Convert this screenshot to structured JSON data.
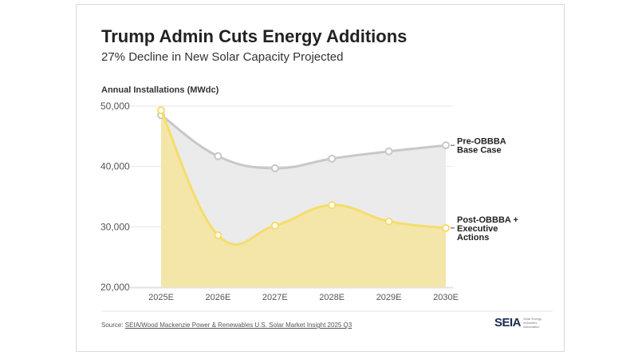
{
  "chart_data": {
    "type": "area",
    "title": "Trump Admin Cuts Energy Additions",
    "subtitle": "27% Decline in New Solar Capacity Projected",
    "ylabel": "Annual Installations (MWdc)",
    "xlabel": "",
    "categories": [
      "2025E",
      "2026E",
      "2027E",
      "2028E",
      "2029E",
      "2030E"
    ],
    "ylim": [
      20000,
      50000
    ],
    "yticks": [
      20000,
      30000,
      40000,
      50000
    ],
    "ytick_labels": [
      "20,000",
      "30,000",
      "40,000",
      "50,000"
    ],
    "grid": true,
    "series": [
      {
        "name": "Pre-OBBBA Base Case",
        "label_lines": [
          "Pre-OBBBA",
          "Base Case"
        ],
        "values": [
          48500,
          41700,
          39700,
          41300,
          42500,
          43500
        ],
        "color": "#c8c8c8",
        "fill": "#ebebeb"
      },
      {
        "name": "Post-OBBBA + Executive Actions",
        "label_lines": [
          "Post-OBBBA +",
          "Executive",
          "Actions"
        ],
        "values": [
          49300,
          28600,
          30200,
          33600,
          30900,
          29800
        ],
        "color": "#f5dd6b",
        "fill": "#f3e6a8"
      }
    ],
    "legend": "right, inline labels"
  },
  "source": {
    "prefix": "Source: ",
    "text": "SEIA/Wood Mackenzie Power & Renewables U.S. Solar Market Insight 2025 Q3"
  },
  "logo": {
    "text": "SEIA",
    "tagline": "Solar Energy Industries Association"
  }
}
